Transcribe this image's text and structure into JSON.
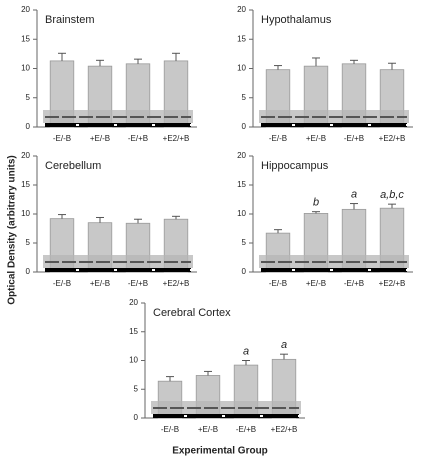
{
  "y_axis_label": "Optical Density (arbitrary units)",
  "x_axis_label": "Experimental Group",
  "chart_data": [
    {
      "type": "bar",
      "title": "Brainstem",
      "categories": [
        "-E/-B",
        "+E/-B",
        "-E/+B",
        "+E2/+B"
      ],
      "values": [
        11.3,
        10.4,
        10.8,
        11.3
      ],
      "errors": [
        1.3,
        1.0,
        0.8,
        1.3
      ],
      "color": "#c8c8c8",
      "ylim": [
        0,
        20
      ],
      "yticks": [
        0,
        5,
        10,
        15,
        20
      ]
    },
    {
      "type": "bar",
      "title": "Hypothalamus",
      "categories": [
        "-E/-B",
        "+E/-B",
        "-E/+B",
        "+E2/+B"
      ],
      "values": [
        9.8,
        10.4,
        10.8,
        9.8
      ],
      "errors": [
        0.7,
        1.4,
        0.6,
        1.1
      ],
      "color": "#c8c8c8",
      "ylim": [
        0,
        20
      ],
      "yticks": [
        0,
        5,
        10,
        15,
        20
      ]
    },
    {
      "type": "bar",
      "title": "Cerebellum",
      "categories": [
        "-E/-B",
        "+E/-B",
        "-E/+B",
        "+E2/+B"
      ],
      "values": [
        9.2,
        8.5,
        8.4,
        9.1
      ],
      "errors": [
        0.7,
        0.9,
        0.7,
        0.5
      ],
      "color": "#c8c8c8",
      "ylim": [
        0,
        20
      ],
      "yticks": [
        0,
        5,
        10,
        15,
        20
      ]
    },
    {
      "type": "bar",
      "title": "Hippocampus",
      "categories": [
        "-E/-B",
        "+E/-B",
        "-E/+B",
        "+E2/+B"
      ],
      "values": [
        6.7,
        10.1,
        10.8,
        11.0
      ],
      "errors": [
        0.6,
        0.3,
        1.0,
        0.7
      ],
      "color": "#c8c8c8",
      "annotations": [
        null,
        "b",
        "a",
        "a,b,c"
      ],
      "ylim": [
        0,
        20
      ],
      "yticks": [
        0,
        5,
        10,
        15,
        20
      ]
    },
    {
      "type": "bar",
      "title": "Cerebral Cortex",
      "categories": [
        "-E/-B",
        "+E/-B",
        "-E/+B",
        "+E2/+B"
      ],
      "values": [
        6.4,
        7.4,
        9.2,
        10.2
      ],
      "errors": [
        0.8,
        0.7,
        0.8,
        0.9
      ],
      "color": "#c8c8c8",
      "annotations": [
        null,
        null,
        "a",
        "a"
      ],
      "ylim": [
        0,
        20
      ],
      "yticks": [
        0,
        5,
        10,
        15,
        20
      ]
    }
  ]
}
